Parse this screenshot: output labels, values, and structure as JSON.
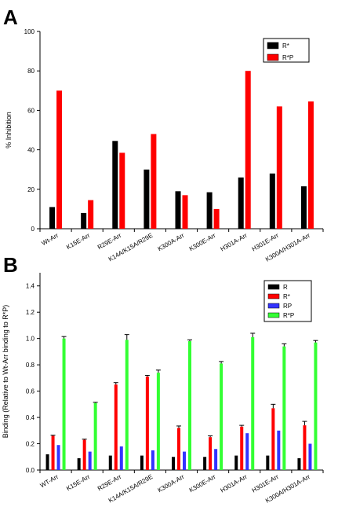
{
  "chart_data": [
    {
      "panel": "A",
      "type": "bar",
      "ylabel": "% Inhibition",
      "ylim": [
        0,
        100
      ],
      "yticks": [
        0,
        20,
        40,
        60,
        80,
        100
      ],
      "categories": [
        "Wt-Arr",
        "K15E-Arr",
        "R29E-Arr",
        "K14A/K15A/R29E",
        "K300A-Arr",
        "K300E-Arr",
        "H301A-Arr",
        "H301E-Arr",
        "K300A/H301A-Arr"
      ],
      "series": [
        {
          "name": "R*",
          "color": "#000000",
          "values": [
            11,
            8,
            44.5,
            30,
            19,
            18.5,
            26,
            28,
            21.5
          ]
        },
        {
          "name": "R*P",
          "color": "#ff0000",
          "values": [
            70,
            14.5,
            38.5,
            48,
            17,
            10,
            80,
            62,
            64.5
          ]
        }
      ],
      "legend_position": "top-right",
      "grid": false
    },
    {
      "panel": "B",
      "type": "bar",
      "ylabel": "Binding (Relative to Wt-Arr binding to R*P)",
      "ylim": [
        0,
        1.5
      ],
      "yticks": [
        0.0,
        0.2,
        0.4,
        0.6,
        0.8,
        1.0,
        1.2,
        1.4
      ],
      "categories": [
        "WT-Arr",
        "K15E-Arr",
        "R29E-Arr",
        "K14A/K15A/R29E",
        "K300A-Arr",
        "K300E-Arr",
        "H301A-Arr",
        "H301E-Arr",
        "K300A/H301A-Arr"
      ],
      "series": [
        {
          "name": "R",
          "color": "#000000",
          "values": [
            0.12,
            0.09,
            0.11,
            0.11,
            0.1,
            0.1,
            0.11,
            0.11,
            0.09
          ],
          "errors": [
            0,
            0,
            0,
            0,
            0,
            0,
            0,
            0,
            0
          ]
        },
        {
          "name": "R*",
          "color": "#ff0000",
          "values": [
            0.26,
            0.23,
            0.65,
            0.71,
            0.32,
            0.25,
            0.33,
            0.47,
            0.34
          ],
          "errors": [
            0.005,
            0.005,
            0.015,
            0.01,
            0.015,
            0.01,
            0.01,
            0.03,
            0.03
          ]
        },
        {
          "name": "RP",
          "color": "#3333ff",
          "values": [
            0.19,
            0.14,
            0.18,
            0.15,
            0.14,
            0.16,
            0.28,
            0.3,
            0.2
          ],
          "errors": [
            0,
            0,
            0,
            0,
            0,
            0,
            0,
            0,
            0
          ]
        },
        {
          "name": "R*P",
          "color": "#33ff33",
          "values": [
            1.0,
            0.51,
            0.99,
            0.74,
            0.98,
            0.81,
            1.01,
            0.94,
            0.97
          ],
          "errors": [
            0.015,
            0.005,
            0.04,
            0.02,
            0.01,
            0.015,
            0.03,
            0.02,
            0.015
          ]
        }
      ],
      "legend_position": "top-right",
      "grid": false
    }
  ]
}
